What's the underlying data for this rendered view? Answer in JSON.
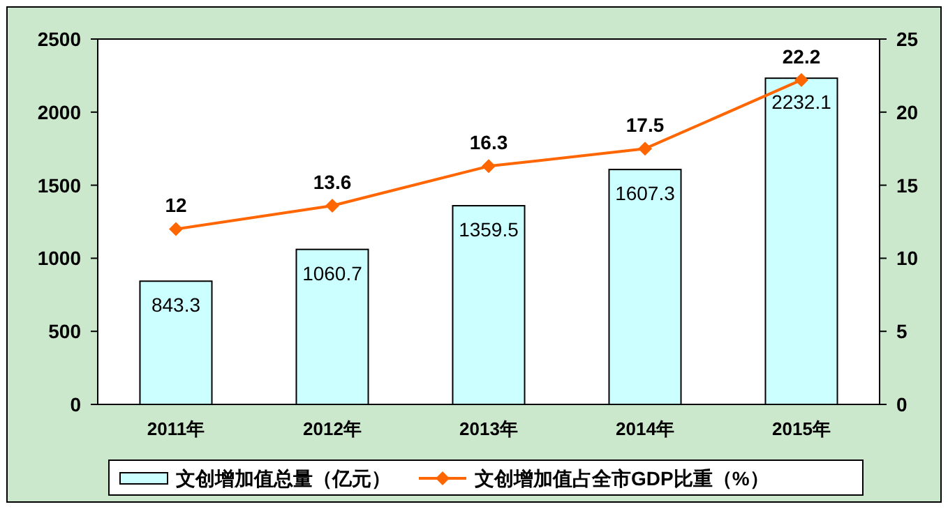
{
  "chart_data": {
    "type": "bar",
    "categories": [
      "2011年",
      "2012年",
      "2013年",
      "2014年",
      "2015年"
    ],
    "series": [
      {
        "name": "文创增加值总量（亿元）",
        "color": "#ccffff",
        "values": [
          843.3,
          1060.7,
          1359.5,
          1607.3,
          2232.1
        ]
      },
      {
        "name": "文创增加值占全市GDP比重（%）",
        "type": "line",
        "axis": "y2",
        "color": "#ff6600",
        "marker": "diamond",
        "values": [
          12,
          13.6,
          16.3,
          17.5,
          22.2
        ]
      }
    ],
    "ylim": [
      0,
      2500
    ],
    "yticks": [
      0,
      500,
      1000,
      1500,
      2000,
      2500
    ],
    "y2lim": [
      0,
      25
    ],
    "y2ticks": [
      0,
      5,
      10,
      15,
      20,
      25
    ],
    "data_labels": true,
    "legend": "bottom",
    "grid": false
  }
}
